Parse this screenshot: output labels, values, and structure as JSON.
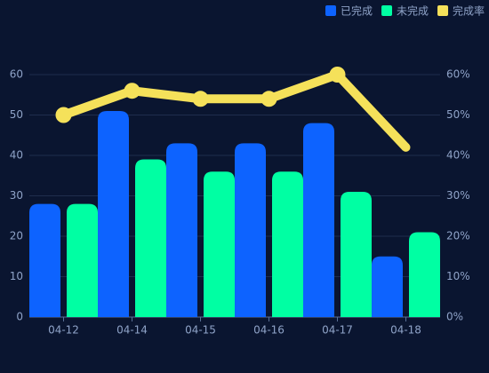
{
  "chart_data": {
    "type": "bar",
    "categories": [
      "04-12",
      "04-14",
      "04-15",
      "04-16",
      "04-17",
      "04-18"
    ],
    "series": [
      {
        "name": "已完成",
        "color": "#0d63ff",
        "type": "bar",
        "values": [
          28,
          51,
          43,
          43,
          48,
          15
        ]
      },
      {
        "name": "未完成",
        "color": "#00ffa3",
        "type": "bar",
        "values": [
          28,
          39,
          36,
          36,
          31,
          21
        ]
      },
      {
        "name": "完成率",
        "color": "#f5e15a",
        "type": "line",
        "axis": "y2",
        "values": [
          50,
          56,
          54,
          54,
          60,
          42
        ]
      }
    ],
    "ylim": [
      0,
      60
    ],
    "yticks": [
      0,
      10,
      20,
      30,
      40,
      50,
      60
    ],
    "y2lim": [
      0,
      60
    ],
    "y2ticks": [
      {
        "value": 0,
        "label": "0%"
      },
      {
        "value": 10,
        "label": "10%"
      },
      {
        "value": 20,
        "label": "20%"
      },
      {
        "value": 30,
        "label": "30%"
      },
      {
        "value": 40,
        "label": "40%"
      },
      {
        "value": 50,
        "label": "50%"
      },
      {
        "value": 60,
        "label": "60%"
      }
    ],
    "grid": true,
    "legend": "top-right"
  }
}
